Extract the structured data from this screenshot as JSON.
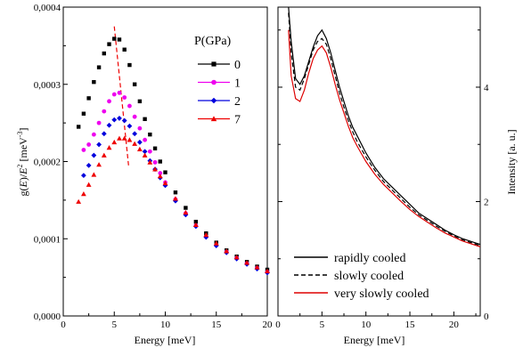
{
  "chart_data": [
    {
      "type": "scatter",
      "xlabel": "Energy [meV]",
      "ylabel": "g(E)/E^2 [meV^-3]",
      "xlim": [
        0,
        20
      ],
      "ylim": [
        0,
        0.0004
      ],
      "x_ticks": [
        "0",
        "5",
        "10",
        "15",
        "20"
      ],
      "y_ticks": [
        "0,0000",
        "0,0001",
        "0,0002",
        "0,0003",
        "0,0004"
      ],
      "legend_title": "P(GPa)",
      "legend_position": "top-right",
      "grid": false,
      "series": [
        {
          "name": "0",
          "color": "#000000",
          "marker": "square",
          "x": [
            1.5,
            2,
            2.5,
            3,
            3.5,
            4,
            4.5,
            5,
            5.5,
            6,
            6.5,
            7,
            7.5,
            8,
            8.5,
            9,
            9.5,
            10,
            11,
            12,
            13,
            14,
            15,
            16,
            17,
            18,
            19,
            20
          ],
          "y": [
            0.000245,
            0.000262,
            0.000282,
            0.000303,
            0.000322,
            0.00034,
            0.000352,
            0.000359,
            0.000358,
            0.000345,
            0.000325,
            0.0003,
            0.000278,
            0.000255,
            0.000235,
            0.000217,
            0.0002,
            0.000186,
            0.00016,
            0.00014,
            0.000122,
            0.000107,
            9.5e-05,
            8.5e-05,
            7.7e-05,
            7e-05,
            6.4e-05,
            6e-05
          ]
        },
        {
          "name": "1",
          "color": "#ee00ee",
          "marker": "circle",
          "x": [
            2,
            2.5,
            3,
            3.5,
            4,
            4.5,
            5,
            5.5,
            6,
            6.5,
            7,
            7.5,
            8,
            8.5,
            9,
            9.5,
            10,
            11,
            12,
            13,
            14,
            15,
            16,
            17,
            18,
            19,
            20
          ],
          "y": [
            0.000215,
            0.000222,
            0.000235,
            0.00025,
            0.000265,
            0.000278,
            0.000287,
            0.000289,
            0.000283,
            0.000272,
            0.000258,
            0.000243,
            0.000228,
            0.000213,
            0.000199,
            0.000185,
            0.000173,
            0.000151,
            0.000133,
            0.000117,
            0.000103,
            9.2e-05,
            8.3e-05,
            7.5e-05,
            6.8e-05,
            6.2e-05,
            5.7e-05
          ]
        },
        {
          "name": "2",
          "color": "#0000dd",
          "marker": "diamond",
          "x": [
            2,
            2.5,
            3,
            3.5,
            4,
            4.5,
            5,
            5.5,
            6,
            6.5,
            7,
            7.5,
            8,
            8.5,
            9,
            9.5,
            10,
            11,
            12,
            13,
            14,
            15,
            16,
            17,
            18,
            19,
            20
          ],
          "y": [
            0.000182,
            0.000195,
            0.000208,
            0.000222,
            0.000236,
            0.000247,
            0.000254,
            0.000256,
            0.000253,
            0.000246,
            0.000236,
            0.000225,
            0.000213,
            0.000201,
            0.00019,
            0.000179,
            0.000169,
            0.000149,
            0.000131,
            0.000116,
            0.000102,
            9.1e-05,
            8.2e-05,
            7.4e-05,
            6.7e-05,
            6.1e-05,
            5.6e-05
          ]
        },
        {
          "name": "7",
          "color": "#ee0000",
          "marker": "triangle",
          "x": [
            1.5,
            2,
            2.5,
            3,
            3.5,
            4,
            4.5,
            5,
            5.5,
            6,
            6.5,
            7,
            7.5,
            8,
            8.5,
            9,
            9.5,
            10,
            11,
            12,
            13,
            14,
            15,
            16,
            17,
            18,
            19,
            20
          ],
          "y": [
            0.000148,
            0.000158,
            0.00017,
            0.000183,
            0.000196,
            0.000208,
            0.000218,
            0.000225,
            0.00023,
            0.00023,
            0.000228,
            0.000223,
            0.000216,
            0.000208,
            0.000199,
            0.00019,
            0.000181,
            0.000172,
            0.000152,
            0.000134,
            0.000118,
            0.000105,
            9.4e-05,
            8.4e-05,
            7.6e-05,
            6.9e-05,
            6.3e-05,
            5.8e-05
          ]
        }
      ],
      "peak_trend": {
        "color": "#ee0000",
        "style": "dashed",
        "x": [
          5.0,
          6.4
        ],
        "y": [
          0.000375,
          0.000195
        ]
      }
    },
    {
      "type": "line",
      "xlabel": "Energy [meV]",
      "ylabel": "Intensity [a. u.]",
      "xlim": [
        0,
        23
      ],
      "ylim": [
        0,
        5.4
      ],
      "x_ticks": [
        "0",
        "5",
        "10",
        "15",
        "20"
      ],
      "y_ticks": [
        "0",
        "2",
        "4"
      ],
      "legend_position": "bottom-center",
      "grid": false,
      "series": [
        {
          "name": "rapidly cooled",
          "color": "#000000",
          "style": "solid",
          "x": [
            1.2,
            1.5,
            2,
            2.5,
            3,
            3.5,
            4,
            4.5,
            5,
            5.5,
            6,
            6.5,
            7,
            7.5,
            8,
            8.5,
            9,
            10,
            11,
            12,
            13,
            14,
            15,
            16,
            17,
            18,
            19,
            20,
            21,
            22,
            23
          ],
          "y": [
            5.4,
            4.8,
            4.15,
            4.05,
            4.2,
            4.45,
            4.7,
            4.9,
            5.0,
            4.85,
            4.6,
            4.3,
            4.0,
            3.75,
            3.5,
            3.3,
            3.15,
            2.85,
            2.6,
            2.4,
            2.25,
            2.1,
            1.95,
            1.8,
            1.7,
            1.6,
            1.5,
            1.42,
            1.35,
            1.3,
            1.25
          ]
        },
        {
          "name": "slowly cooled",
          "color": "#000000",
          "style": "dashed",
          "x": [
            1.2,
            1.5,
            2,
            2.5,
            3,
            3.5,
            4,
            4.5,
            5,
            5.5,
            6,
            6.5,
            7,
            7.5,
            8,
            8.5,
            9,
            10,
            11,
            12,
            13,
            14,
            15,
            16,
            17,
            18,
            19,
            20,
            21,
            22,
            23
          ],
          "y": [
            5.3,
            4.6,
            4.0,
            3.95,
            4.15,
            4.4,
            4.65,
            4.8,
            4.85,
            4.75,
            4.5,
            4.2,
            3.9,
            3.65,
            3.42,
            3.22,
            3.05,
            2.78,
            2.55,
            2.35,
            2.2,
            2.05,
            1.9,
            1.77,
            1.67,
            1.57,
            1.48,
            1.4,
            1.33,
            1.28,
            1.23
          ]
        },
        {
          "name": "very slowly cooled",
          "color": "#dd0000",
          "style": "solid",
          "x": [
            1.2,
            1.5,
            2,
            2.5,
            3,
            3.5,
            4,
            4.5,
            5,
            5.5,
            6,
            6.5,
            7,
            7.5,
            8,
            8.5,
            9,
            10,
            11,
            12,
            13,
            14,
            15,
            16,
            17,
            18,
            19,
            20,
            21,
            22,
            23
          ],
          "y": [
            5.0,
            4.2,
            3.8,
            3.75,
            3.95,
            4.25,
            4.5,
            4.65,
            4.72,
            4.6,
            4.35,
            4.05,
            3.78,
            3.55,
            3.32,
            3.12,
            2.97,
            2.7,
            2.48,
            2.3,
            2.15,
            2.0,
            1.86,
            1.74,
            1.64,
            1.54,
            1.45,
            1.38,
            1.31,
            1.26,
            1.21
          ]
        }
      ]
    }
  ]
}
